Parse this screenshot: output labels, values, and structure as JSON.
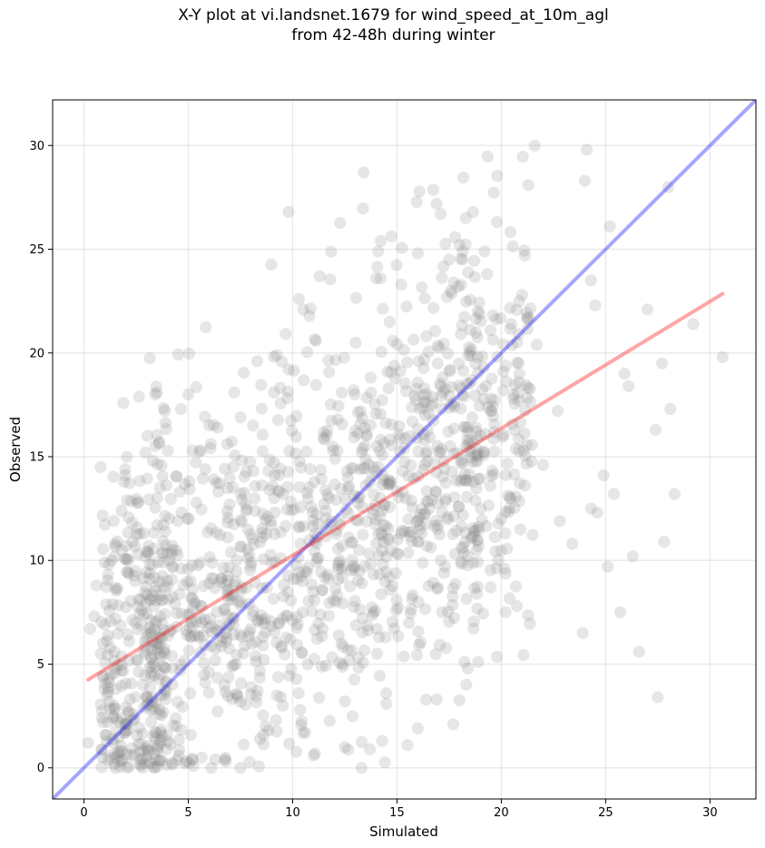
{
  "chart_data": {
    "type": "scatter",
    "title_lines": [
      "X-Y plot at vi.landsnet.1679 for wind_speed_at_10m_agl",
      "from 42-48h during winter"
    ],
    "xlabel": "Simulated",
    "ylabel": "Observed",
    "xlim": [
      -1.5,
      32.2
    ],
    "ylim": [
      -1.5,
      32.2
    ],
    "xticks": [
      0,
      5,
      10,
      15,
      20,
      25,
      30
    ],
    "yticks": [
      0,
      5,
      10,
      15,
      20,
      25,
      30
    ],
    "grid": true,
    "point_color": "#808080",
    "point_alpha": 0.2,
    "n_points_estimated": 1600,
    "series": [
      {
        "kind": "points",
        "points": [
          [
            0.2,
            1.2
          ],
          [
            0.3,
            6.7
          ],
          [
            0.5,
            7.3
          ],
          [
            0.6,
            8.8
          ],
          [
            0.8,
            14.5
          ],
          [
            0.8,
            5.5
          ],
          [
            1.0,
            9.9
          ],
          [
            1.2,
            4.3
          ],
          [
            1.4,
            2.4
          ],
          [
            1.5,
            0.0
          ],
          [
            1.8,
            12.4
          ],
          [
            2.0,
            1.8
          ],
          [
            2.2,
            3.3
          ],
          [
            2.6,
            12.8
          ],
          [
            2.8,
            0.0
          ],
          [
            3.1,
            10.7
          ],
          [
            3.3,
            14.8
          ],
          [
            3.6,
            15.7
          ],
          [
            3.9,
            11.4
          ],
          [
            4.2,
            10.3
          ],
          [
            4.6,
            13.3
          ],
          [
            5.0,
            18.0
          ],
          [
            5.2,
            15.3
          ],
          [
            6.0,
            16.5
          ],
          [
            6.4,
            16.4
          ],
          [
            7.2,
            18.1
          ],
          [
            8.1,
            16.5
          ],
          [
            8.3,
            19.6
          ],
          [
            9.1,
            18.1
          ],
          [
            9.8,
            19.2
          ],
          [
            9.8,
            26.8
          ],
          [
            10.3,
            22.6
          ],
          [
            10.5,
            22.1
          ],
          [
            11.3,
            23.7
          ],
          [
            13.4,
            28.7
          ],
          [
            14.0,
            23.6
          ],
          [
            14.1,
            24.9
          ],
          [
            15.2,
            23.3
          ],
          [
            16.0,
            24.8
          ],
          [
            16.9,
            27.2
          ],
          [
            17.1,
            26.7
          ],
          [
            17.4,
            22.7
          ],
          [
            17.5,
            24.5
          ],
          [
            18.0,
            25.2
          ],
          [
            18.3,
            26.5
          ],
          [
            19.2,
            24.9
          ],
          [
            20.1,
            19.1
          ],
          [
            20.6,
            18.0
          ],
          [
            21.0,
            22.8
          ],
          [
            21.3,
            28.1
          ],
          [
            21.6,
            30.0
          ],
          [
            21.7,
            20.4
          ],
          [
            22.0,
            14.6
          ],
          [
            22.7,
            17.2
          ],
          [
            22.8,
            11.9
          ],
          [
            23.4,
            10.8
          ],
          [
            24.1,
            29.8
          ],
          [
            24.0,
            28.3
          ],
          [
            24.3,
            23.5
          ],
          [
            24.5,
            22.3
          ],
          [
            24.3,
            12.5
          ],
          [
            24.6,
            12.3
          ],
          [
            24.9,
            14.1
          ],
          [
            25.1,
            9.7
          ],
          [
            25.2,
            26.1
          ],
          [
            25.4,
            13.2
          ],
          [
            25.7,
            7.5
          ],
          [
            25.9,
            19.0
          ],
          [
            26.1,
            18.4
          ],
          [
            26.3,
            10.2
          ],
          [
            26.6,
            5.6
          ],
          [
            27.0,
            22.1
          ],
          [
            27.4,
            16.3
          ],
          [
            27.5,
            3.4
          ],
          [
            27.8,
            10.9
          ],
          [
            27.7,
            19.5
          ],
          [
            28.0,
            28.0
          ],
          [
            28.1,
            17.3
          ],
          [
            28.3,
            13.2
          ],
          [
            29.2,
            21.4
          ],
          [
            30.6,
            19.8
          ],
          [
            23.9,
            6.5
          ],
          [
            18.9,
            5.1
          ],
          [
            18.4,
            4.8
          ],
          [
            17.7,
            2.1
          ],
          [
            16.9,
            3.3
          ],
          [
            15.5,
            1.1
          ],
          [
            16.0,
            1.9
          ],
          [
            13.7,
            0.9
          ],
          [
            13.3,
            0.0
          ],
          [
            12.5,
            1.0
          ],
          [
            11.0,
            0.6
          ],
          [
            10.6,
            1.7
          ],
          [
            9.2,
            2.3
          ],
          [
            8.6,
            1.6
          ],
          [
            7.5,
            0.0
          ],
          [
            6.8,
            0.3
          ],
          [
            6.1,
            0.0
          ],
          [
            5.2,
            0.4
          ]
        ]
      },
      {
        "kind": "line",
        "name": "",
        "color": "#0000ff",
        "alpha": 0.35,
        "x": [
          -1.5,
          32.2
        ],
        "y": [
          -1.5,
          32.2
        ]
      },
      {
        "kind": "line",
        "name": "",
        "color": "#ff0000",
        "alpha": 0.35,
        "x": [
          0.2,
          30.6
        ],
        "y": [
          4.25,
          22.85
        ]
      }
    ]
  }
}
